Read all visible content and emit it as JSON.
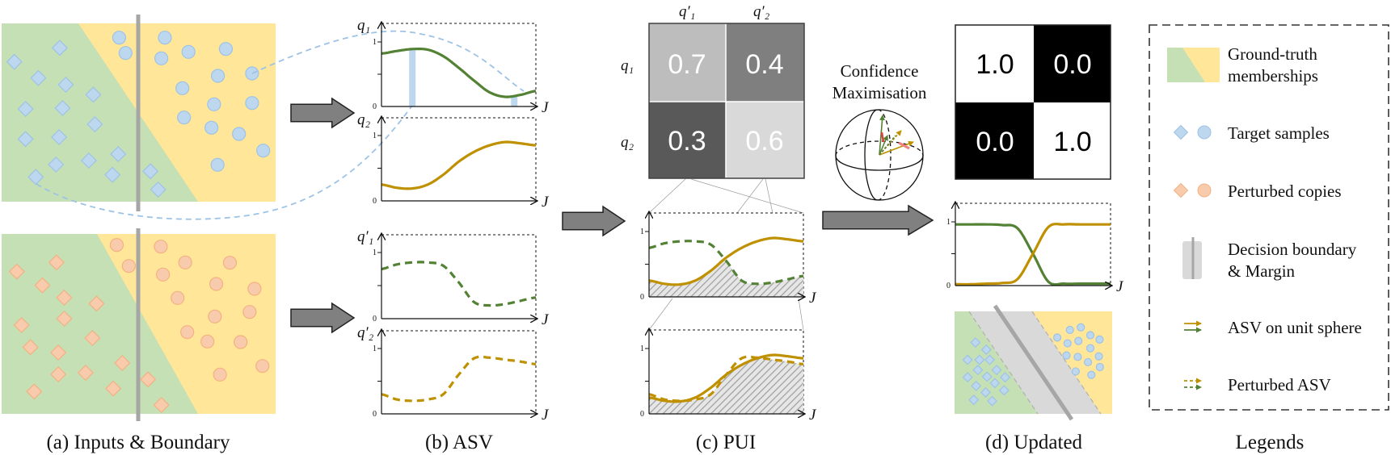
{
  "captions": {
    "a": "(a) Inputs & Boundary",
    "b": "(b) ASV",
    "c": "(c) PUI",
    "d": "(d) Updated",
    "legends": "Legends"
  },
  "axis_labels": {
    "q1": "q₁",
    "q2": "q₂",
    "qp1": "q′₁",
    "qp2": "q′₂",
    "x": "J",
    "tick_one": "1",
    "tick_zero": "0"
  },
  "pui_matrix": {
    "col_labels": [
      "q′₁",
      "q′₂"
    ],
    "row_labels": [
      "q₁",
      "q₂"
    ],
    "values": [
      [
        "0.7",
        "0.4"
      ],
      [
        "0.3",
        "0.6"
      ]
    ]
  },
  "confidence": {
    "line1": "Confidence",
    "line2": "Maximisation"
  },
  "updated_matrix": {
    "values": [
      [
        "1.0",
        "0.0"
      ],
      [
        "0.0",
        "1.0"
      ]
    ]
  },
  "pui_signs": {
    "negative": "−",
    "positive": "+"
  },
  "legend": {
    "items": [
      {
        "line1": "Ground-truth",
        "line2": "memberships"
      },
      {
        "line1": "Target samples"
      },
      {
        "line1": "Perturbed copies"
      },
      {
        "line1": "Decision boundary",
        "line2": "& Margin"
      },
      {
        "line1": "ASV on unit sphere"
      },
      {
        "line1": "Perturbed ASV"
      }
    ]
  },
  "colors": {
    "green_region": "#c5e0b4",
    "yellow_region": "#ffe699",
    "sample_blue": "#bdd7ee",
    "sample_blue_edge": "#9dc3e6",
    "sample_orange": "#f8cbad",
    "sample_orange_edge": "#f4b183",
    "curve_green": "#548235",
    "curve_gold": "#bf9000",
    "boundary": "#a6a6a6",
    "arrow": "#808080"
  },
  "curves": {
    "x": [
      0,
      0.1,
      0.2,
      0.3,
      0.4,
      0.5,
      0.6,
      0.7,
      0.8,
      0.9,
      1.0
    ],
    "target_q1": [
      0.82,
      0.86,
      0.89,
      0.88,
      0.78,
      0.6,
      0.4,
      0.22,
      0.15,
      0.18,
      0.24
    ],
    "target_q2": [
      0.25,
      0.2,
      0.19,
      0.25,
      0.4,
      0.6,
      0.75,
      0.85,
      0.9,
      0.88,
      0.85
    ],
    "perturbed_q1": [
      0.75,
      0.82,
      0.85,
      0.85,
      0.8,
      0.55,
      0.25,
      0.2,
      0.22,
      0.27,
      0.32
    ],
    "perturbed_q2": [
      0.3,
      0.22,
      0.2,
      0.22,
      0.3,
      0.6,
      0.85,
      0.86,
      0.83,
      0.8,
      0.76
    ],
    "updated_q1": [
      0.96,
      0.96,
      0.96,
      0.95,
      0.9,
      0.5,
      0.06,
      0.03,
      0.03,
      0.03,
      0.03
    ],
    "updated_q2": [
      0.02,
      0.02,
      0.03,
      0.04,
      0.1,
      0.5,
      0.92,
      0.96,
      0.96,
      0.96,
      0.96
    ]
  }
}
